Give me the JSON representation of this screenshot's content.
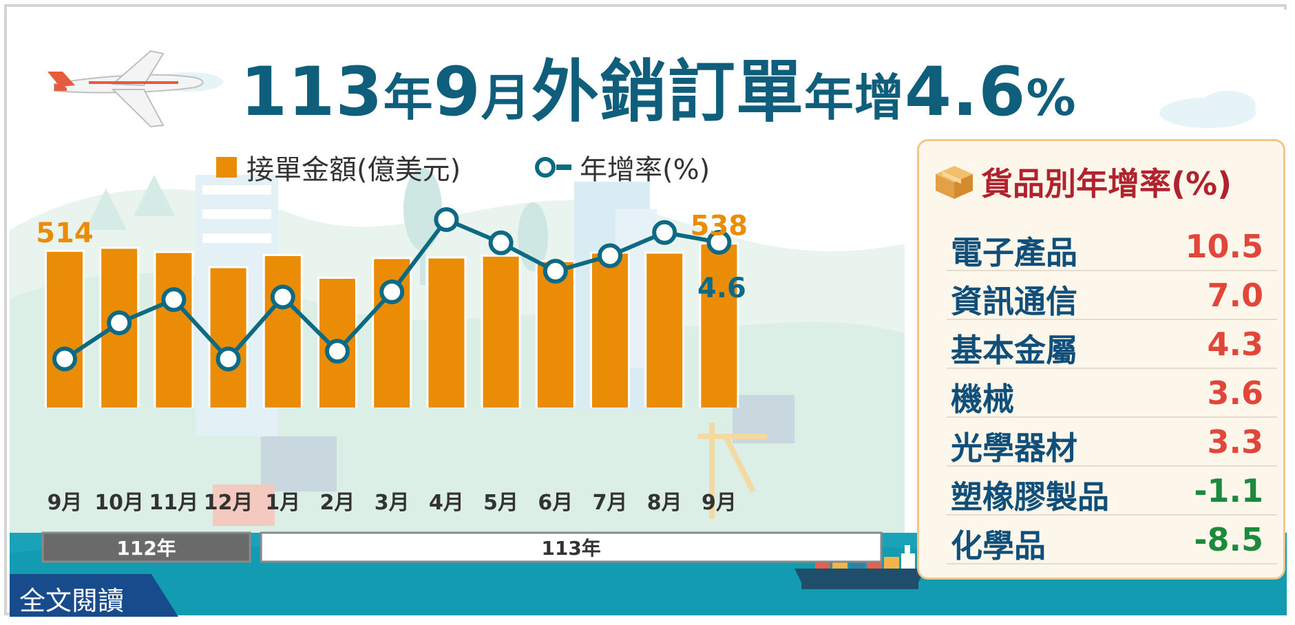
{
  "title": {
    "part1": "113",
    "part2": "年",
    "part3": "9",
    "part4": "月",
    "part5": "外銷訂單",
    "part6": "年增",
    "part7": "4.6",
    "part8": "%"
  },
  "legend": {
    "bar_label": "接單金額(億美元)",
    "line_label": "年增率(%)"
  },
  "colors": {
    "bar": "#eb8c06",
    "line": "#0d6a82",
    "positive": "#e0473a",
    "negative": "#1c8a3c",
    "title": "#0f5f7c"
  },
  "chart_data": {
    "type": "bar",
    "title": "113年9月外銷訂單年增4.6%",
    "categories": [
      "9月",
      "10月",
      "11月",
      "12月",
      "1月",
      "2月",
      "3月",
      "4月",
      "5月",
      "6月",
      "7月",
      "8月",
      "9月"
    ],
    "year_groups": [
      {
        "label": "112年",
        "span": 4
      },
      {
        "label": "113年",
        "span": 9
      }
    ],
    "series": [
      {
        "name": "接單金額(億美元)",
        "type": "bar",
        "values": [
          514,
          524,
          510,
          460,
          500,
          425,
          490,
          492,
          498,
          480,
          508,
          508,
          538
        ]
      },
      {
        "name": "年增率(%)",
        "type": "line",
        "values": [
          -18.0,
          -11.0,
          -6.5,
          -18.0,
          -6.0,
          -16.5,
          -5.0,
          9.0,
          4.5,
          -1.0,
          2.0,
          6.5,
          4.6
        ]
      }
    ],
    "bar_labels": [
      {
        "index": 0,
        "text": "514"
      },
      {
        "index": 12,
        "text": "538"
      }
    ],
    "line_labels": [
      {
        "index": 12,
        "text": "4.6"
      }
    ],
    "ylim_bar": [
      0,
      560
    ],
    "ylim_line": [
      -25,
      15
    ]
  },
  "panel": {
    "title": "貨品別年增率(%)",
    "rows": [
      {
        "name": "電子產品",
        "value": "10.5"
      },
      {
        "name": "資訊通信",
        "value": "7.0"
      },
      {
        "name": "基本金屬",
        "value": "4.3"
      },
      {
        "name": "機械",
        "value": "3.6"
      },
      {
        "name": "光學器材",
        "value": "3.3"
      },
      {
        "name": "塑橡膠製品",
        "value": "-1.1"
      },
      {
        "name": "化學品",
        "value": "-8.5"
      }
    ]
  },
  "read_more": "全文閱讀"
}
